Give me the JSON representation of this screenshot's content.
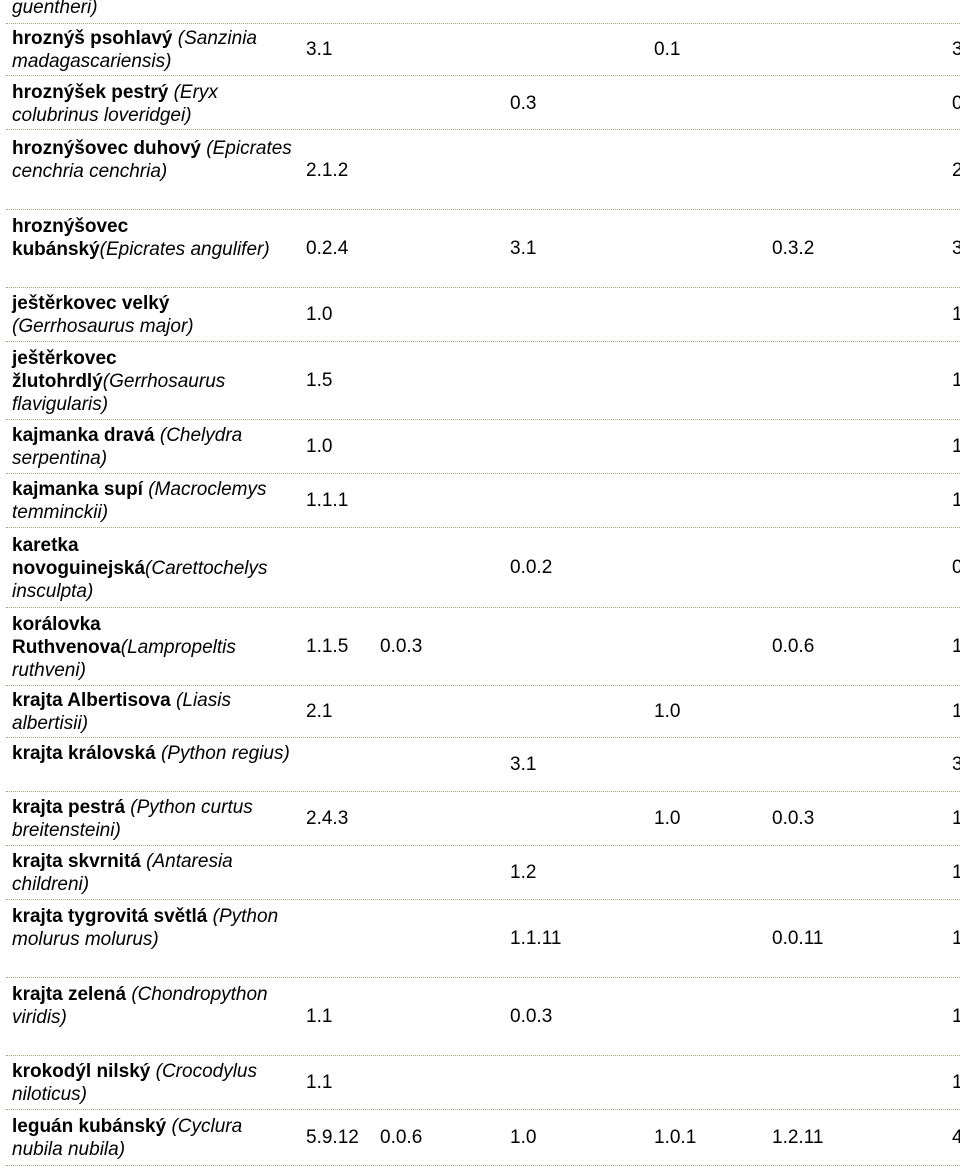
{
  "header_fragment": "guentheri)",
  "rows": [
    {
      "cz": "hroznýš psohlavý",
      "lat": " (Sanzinia madagascariensis)",
      "cells": [
        "3.1",
        "",
        "",
        "0.1",
        "",
        "3"
      ]
    },
    {
      "cz": "hroznýšek pestrý",
      "lat": " (Eryx colubrinus loveridgei)",
      "cells": [
        "",
        "",
        "0.3",
        "",
        "",
        "0"
      ]
    },
    {
      "cz": "hroznýšovec duhový",
      "lat": " (Epicrates cenchria cenchria)",
      "cells": [
        "2.1.2",
        "",
        "",
        "",
        "",
        "2"
      ]
    },
    {
      "cz": "hroznýšovec kubánský",
      "lat": "(Epicrates angulifer)",
      "cells": [
        "0.2.4",
        "",
        "3.1",
        "",
        "0.3.2",
        "3"
      ]
    },
    {
      "cz": "ještěrkovec velký",
      "lat": " (Gerrhosaurus major)",
      "cells": [
        "1.0",
        "",
        "",
        "",
        "",
        "1"
      ]
    },
    {
      "cz": "ještěrkovec žlutohrdlý",
      "lat": "(Gerrhosaurus flavigularis)",
      "cells": [
        "1.5",
        "",
        "",
        "",
        "",
        "1"
      ]
    },
    {
      "cz": "kajmanka dravá",
      "lat": " (Chelydra serpentina)",
      "cells": [
        "1.0",
        "",
        "",
        "",
        "",
        "1"
      ]
    },
    {
      "cz": "kajmanka supí",
      "lat": " (Macroclemys temminckii)",
      "cells": [
        "1.1.1",
        "",
        "",
        "",
        "",
        "1"
      ]
    },
    {
      "cz": "karetka novoguinejská",
      "lat": "(Carettochelys insculpta)",
      "cells": [
        "",
        "",
        "0.0.2",
        "",
        "",
        "0"
      ]
    },
    {
      "cz": "korálovka Ruthvenova",
      "lat": "(Lampropeltis ruthveni)",
      "cells": [
        "1.1.5",
        "0.0.3",
        "",
        "",
        "0.0.6",
        "1"
      ]
    },
    {
      "cz": "krajta Albertisova",
      "lat": " (Liasis albertisii)",
      "cells": [
        "2.1",
        "",
        "",
        "1.0",
        "",
        "1"
      ]
    },
    {
      "cz": "krajta královská",
      "lat": " (Python regius)",
      "cells": [
        "",
        "",
        "3.1",
        "",
        "",
        "3"
      ]
    },
    {
      "cz": "krajta pestrá",
      "lat": " (Python curtus breitensteini)",
      "cells": [
        "2.4.3",
        "",
        "",
        "1.0",
        "0.0.3",
        "1"
      ]
    },
    {
      "cz": "krajta skvrnitá",
      "lat": " (Antaresia childreni)",
      "cells": [
        "",
        "",
        "1.2",
        "",
        "",
        "1"
      ]
    },
    {
      "cz": "krajta tygrovitá světlá",
      "lat": " (Python molurus molurus)",
      "cells": [
        "",
        "",
        "1.1.11",
        "",
        "0.0.11",
        "1"
      ]
    },
    {
      "cz": "krajta zelená",
      "lat": " (Chondropython viridis)",
      "cells": [
        "1.1",
        "",
        "0.0.3",
        "",
        "",
        "1"
      ]
    },
    {
      "cz": "krokodýl nilský",
      "lat": " (Crocodylus niloticus)",
      "cells": [
        "1.1",
        "",
        "",
        "",
        "",
        "1"
      ]
    },
    {
      "cz": "leguán kubánský",
      "lat": " (Cyclura nubila nubila)",
      "cells": [
        "5.9.12",
        "0.0.6",
        "1.0",
        "1.0.1",
        "1.2.11",
        "4"
      ]
    }
  ]
}
